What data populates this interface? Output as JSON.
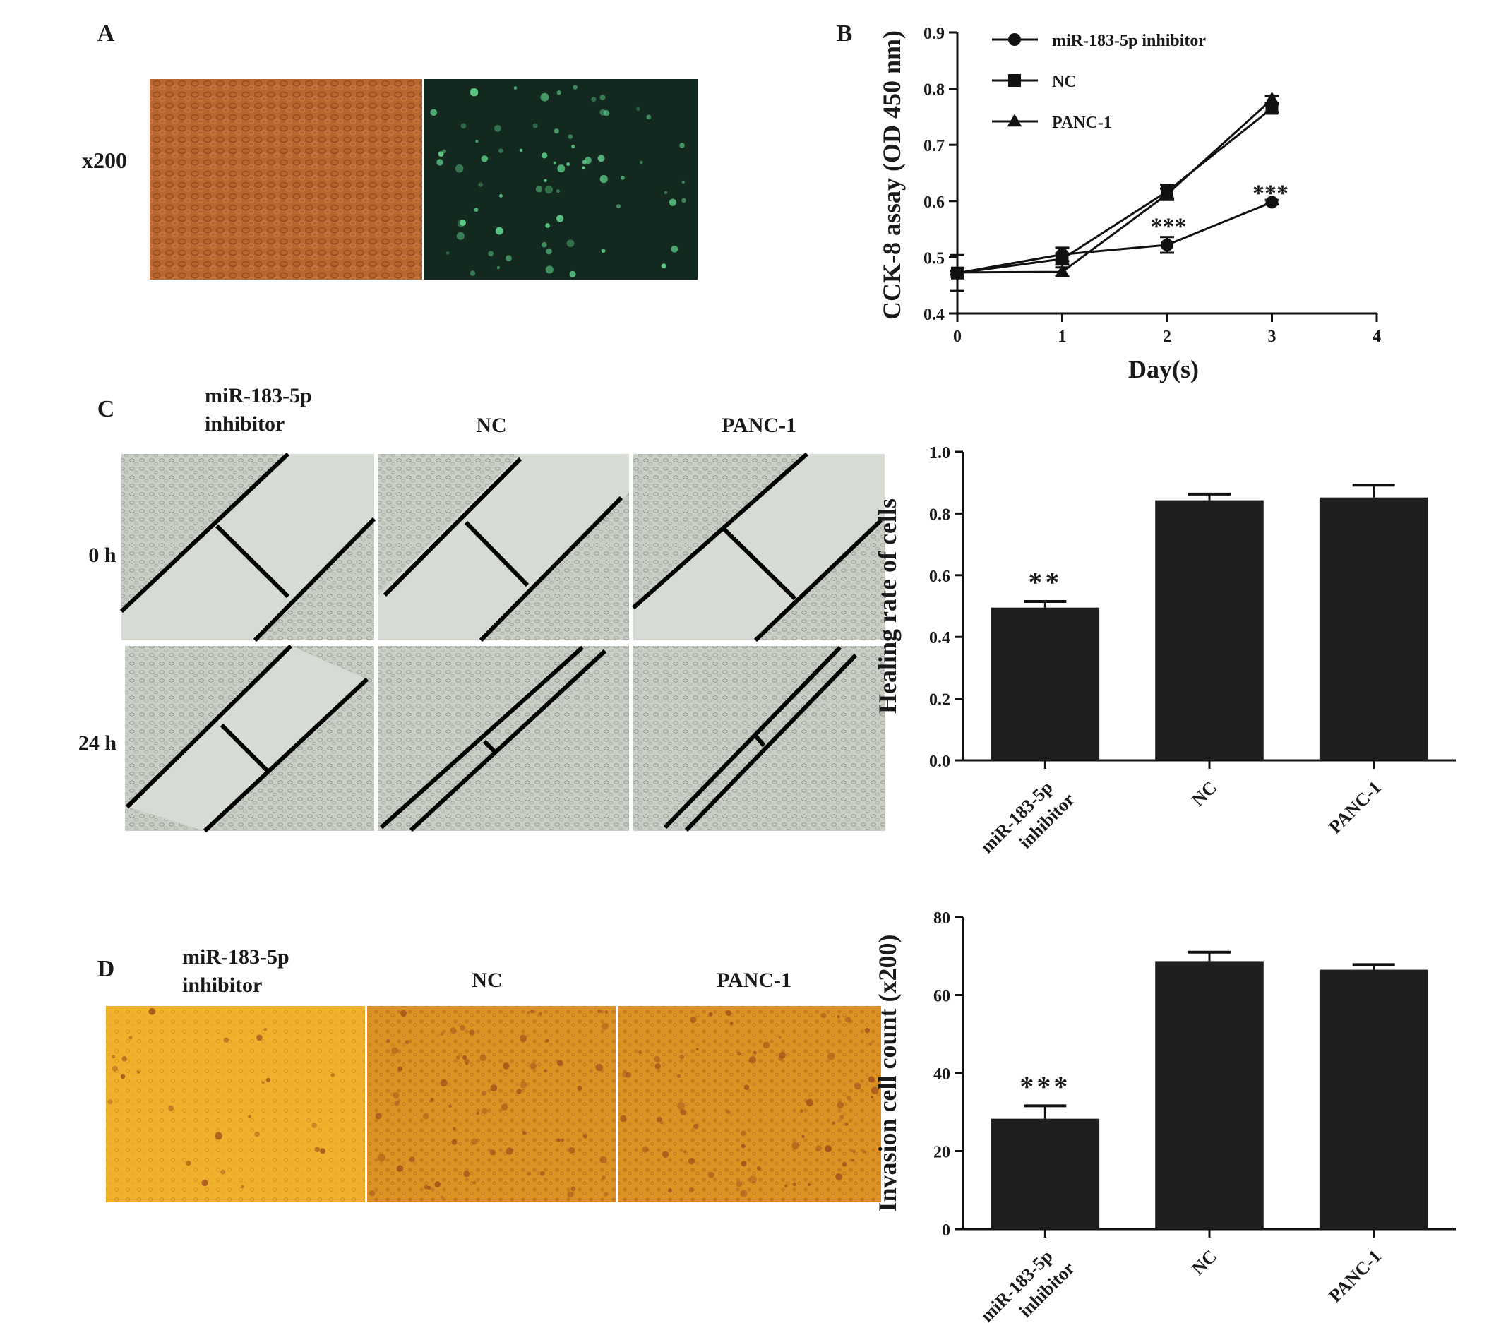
{
  "panels": {
    "A": {
      "label": "A",
      "magnification": "x200",
      "micrographs": [
        "brightfield",
        "green fluorescence"
      ]
    },
    "B": {
      "label": "B",
      "significance": [
        "***",
        "***"
      ]
    },
    "C": {
      "label": "C",
      "column_headers": [
        "miR-183-5p\ninhibitor",
        "NC",
        "PANC-1"
      ],
      "row_labels": [
        "0 h",
        "24 h"
      ],
      "significance": "**"
    },
    "D": {
      "label": "D",
      "column_headers": [
        "miR-183-5p\ninhibitor",
        "NC",
        "PANC-1"
      ],
      "significance": "***"
    }
  },
  "colors": {
    "brightfield_a": "#b8662f",
    "fluorescence": "#13281e",
    "fluor_cells": "#5fd08a",
    "scratch_bg": "#d5dbd3",
    "transwell_a": "#f0b22c",
    "transwell_b": "#d9901e",
    "bar_fill": "#1f1f1f",
    "line": "#111111"
  },
  "chart_data": [
    {
      "id": "B",
      "type": "line",
      "xlabel": "Day(s)",
      "ylabel": "CCK-8 assay (OD 450 nm)",
      "xlim": [
        0,
        4
      ],
      "ylim": [
        0.4,
        0.9
      ],
      "x_ticks": [
        "0",
        "1",
        "2",
        "3",
        "4"
      ],
      "y_ticks": [
        "0.4",
        "0.5",
        "0.6",
        "0.7",
        "0.8",
        "0.9"
      ],
      "legend_position": "top-left",
      "series": [
        {
          "name": "miR-183-5p inhibitor",
          "marker": "circle",
          "x": [
            0,
            1,
            2,
            3
          ],
          "y": [
            0.472,
            0.505,
            0.522,
            0.598
          ],
          "err": [
            0.032,
            0.012,
            0.014,
            0.004
          ]
        },
        {
          "name": "NC",
          "marker": "square",
          "x": [
            0,
            1,
            2,
            3
          ],
          "y": [
            0.472,
            0.497,
            0.617,
            0.765
          ],
          "err": [
            0.003,
            0.01,
            0.012,
            0.007
          ]
        },
        {
          "name": "PANC-1",
          "marker": "triangle",
          "x": [
            0,
            1,
            2,
            3
          ],
          "y": [
            0.473,
            0.474,
            0.612,
            0.781
          ],
          "err": [
            0.003,
            0.008,
            0.01,
            0.006
          ]
        }
      ]
    },
    {
      "id": "C",
      "type": "bar",
      "ylabel": "Healing rate of cells",
      "ylim": [
        0,
        1.0
      ],
      "y_ticks": [
        "0.0",
        "0.2",
        "0.4",
        "0.6",
        "0.8",
        "1.0"
      ],
      "categories": [
        "miR-183-5p\ninhibitor",
        "NC",
        "PANC-1"
      ],
      "values": [
        0.495,
        0.843,
        0.852
      ],
      "errors": [
        0.02,
        0.02,
        0.04
      ]
    },
    {
      "id": "D",
      "type": "bar",
      "ylabel": "Invasion cell count (x200)",
      "ylim": [
        0,
        80
      ],
      "y_ticks": [
        "0",
        "20",
        "40",
        "60",
        "80"
      ],
      "categories": [
        "miR-183-5p\ninhibitor",
        "NC",
        "PANC-1"
      ],
      "values": [
        28.3,
        68.7,
        66.5
      ],
      "errors": [
        3.3,
        2.3,
        1.3
      ]
    }
  ]
}
